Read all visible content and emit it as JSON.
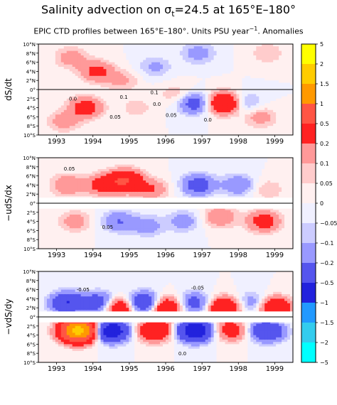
{
  "title_main": "Salinity advection on σ",
  "title_sub": "t",
  "title_rest": "=24.5 at 165°E–180°",
  "subtitle_main": "EPIC CTD profiles between 165°E–180°. Units PSU year",
  "subtitle_sup": "−1",
  "subtitle_rest": ". Anomalies",
  "chart_data": [
    {
      "type": "heatmap",
      "panel": "dS/dt",
      "ylabel": "dS/dt",
      "x_labels": [
        "1993",
        "1994",
        "1995",
        "1996",
        "1997",
        "1998",
        "1999"
      ],
      "y_labels": [
        "10°N",
        "8°N",
        "6°N",
        "4°N",
        "2°N",
        "0°",
        "2°S",
        "4°S",
        "6°S",
        "8°S",
        "10°S"
      ],
      "xlim": [
        1992.5,
        1999.5
      ],
      "ylim": [
        -10,
        10
      ],
      "annotations": [
        "0.0",
        "0.05",
        "0.1",
        "0.0",
        "0.05",
        "0.0",
        "0.1"
      ],
      "blobs": [
        {
          "t": 1993.4,
          "lat": 7,
          "v": 0.15
        },
        {
          "t": 1994.1,
          "lat": 4,
          "v": 0.25
        },
        {
          "t": 1994.8,
          "lat": 2,
          "v": 0.12
        },
        {
          "t": 1995.7,
          "lat": 5,
          "v": -0.12
        },
        {
          "t": 1996.9,
          "lat": 8,
          "v": -0.15
        },
        {
          "t": 1998.8,
          "lat": 8,
          "v": 0.1
        },
        {
          "t": 1993.8,
          "lat": -4,
          "v": 0.3
        },
        {
          "t": 1993.2,
          "lat": -7,
          "v": 0.15
        },
        {
          "t": 1995.2,
          "lat": -4,
          "v": 0.08
        },
        {
          "t": 1996.8,
          "lat": -3,
          "v": -0.3
        },
        {
          "t": 1997.6,
          "lat": -3,
          "v": 0.5
        },
        {
          "t": 1998.2,
          "lat": -3,
          "v": -0.15
        },
        {
          "t": 1998.6,
          "lat": -6,
          "v": 0.15
        },
        {
          "t": 1996.3,
          "lat": -1,
          "v": 0.1
        }
      ]
    },
    {
      "type": "heatmap",
      "panel": "-udS/dx",
      "ylabel": "−udS/dx",
      "x_labels": [
        "1993",
        "1994",
        "1995",
        "1996",
        "1997",
        "1998",
        "1999"
      ],
      "y_labels": [
        "10°N",
        "8°N",
        "6°N",
        "4°N",
        "2°N",
        "0°",
        "2°S",
        "4°S",
        "6°S",
        "8°S",
        "10°S"
      ],
      "xlim": [
        1992.5,
        1999.5
      ],
      "ylim": [
        -10,
        10
      ],
      "annotations": [
        "0.05",
        "0.05"
      ],
      "blobs": [
        {
          "t": 1993.3,
          "lat": 4,
          "v": 0.2
        },
        {
          "t": 1994.3,
          "lat": 4,
          "v": 0.3
        },
        {
          "t": 1994.9,
          "lat": 5,
          "v": 0.5
        },
        {
          "t": 1995.6,
          "lat": 3,
          "v": 0.2
        },
        {
          "t": 1996.9,
          "lat": 4,
          "v": -0.3
        },
        {
          "t": 1998.0,
          "lat": 4,
          "v": -0.2
        },
        {
          "t": 1998.8,
          "lat": 3,
          "v": 0.1
        },
        {
          "t": 1993.5,
          "lat": -4,
          "v": 0.15
        },
        {
          "t": 1994.7,
          "lat": -4,
          "v": -0.2
        },
        {
          "t": 1995.5,
          "lat": -5,
          "v": -0.15
        },
        {
          "t": 1996.5,
          "lat": -4,
          "v": -0.15
        },
        {
          "t": 1997.5,
          "lat": -3,
          "v": 0.2
        },
        {
          "t": 1998.7,
          "lat": -4,
          "v": 0.3
        }
      ]
    },
    {
      "type": "heatmap",
      "panel": "-vdS/dy",
      "ylabel": "−vdS/dy",
      "x_labels": [
        "1993",
        "1994",
        "1995",
        "1996",
        "1997",
        "1998",
        "1999"
      ],
      "y_labels": [
        "10°N",
        "8°N",
        "6°N",
        "4°N",
        "2°N",
        "0°",
        "2°S",
        "4°S",
        "6°S",
        "8°S",
        "10°S"
      ],
      "xlim": [
        1992.5,
        1999.5
      ],
      "ylim": [
        -10,
        10
      ],
      "annotations": [
        "-0.05",
        "0.0",
        "-0.05"
      ],
      "blobs": [
        {
          "t": 1993.3,
          "lat": 3,
          "v": -0.5
        },
        {
          "t": 1994.2,
          "lat": 3,
          "v": -0.4
        },
        {
          "t": 1994.7,
          "lat": 2,
          "v": 0.5
        },
        {
          "t": 1995.4,
          "lat": 3,
          "v": -0.5
        },
        {
          "t": 1996.0,
          "lat": 2,
          "v": 0.5
        },
        {
          "t": 1996.8,
          "lat": 3,
          "v": -0.3
        },
        {
          "t": 1997.6,
          "lat": 2,
          "v": 0.5
        },
        {
          "t": 1998.4,
          "lat": 3,
          "v": -0.2
        },
        {
          "t": 1999.0,
          "lat": 2,
          "v": 0.5
        },
        {
          "t": 1993.6,
          "lat": -3,
          "v": 1.8
        },
        {
          "t": 1994.5,
          "lat": -3,
          "v": -0.8
        },
        {
          "t": 1995.7,
          "lat": -3,
          "v": 0.5
        },
        {
          "t": 1996.8,
          "lat": -3,
          "v": -0.8
        },
        {
          "t": 1997.8,
          "lat": -3,
          "v": 0.3
        },
        {
          "t": 1998.8,
          "lat": -3,
          "v": -0.5
        }
      ]
    }
  ],
  "colorbar": {
    "levels": [
      "5",
      "2",
      "1.5",
      "1",
      "0.5",
      "0.2",
      "0.1",
      "0.05",
      "0",
      "−0.05",
      "−0.1",
      "−0.2",
      "−0.5",
      "−1",
      "−1.5",
      "−2",
      "−5"
    ],
    "colors": [
      "#ffff00",
      "#ffcc00",
      "#ff9900",
      "#ff5544",
      "#ff2222",
      "#ff9999",
      "#ffcccc",
      "#fff0f0",
      "#f0f0ff",
      "#ccccff",
      "#9999ff",
      "#5555ee",
      "#2222dd",
      "#2299ff",
      "#33ccee",
      "#00ffff"
    ]
  }
}
